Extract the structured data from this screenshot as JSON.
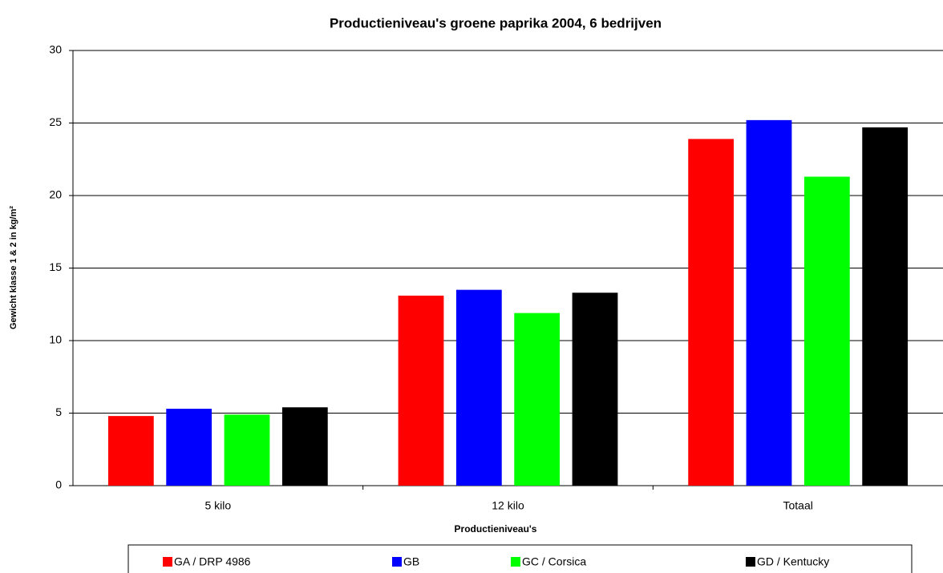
{
  "chart_data": {
    "type": "bar",
    "title": "Productieniveau's groene paprika 2004, 6 bedrijven",
    "x_label": "Productieniveau's",
    "y_label": "Gewicht klasse 1 & 2 in kg/m²",
    "categories": [
      "5 kilo",
      "12 kilo",
      "Totaal"
    ],
    "series": [
      {
        "name": "GA / DRP 4986",
        "color": "#ff0000",
        "values": [
          4.8,
          13.1,
          23.9
        ]
      },
      {
        "name": "GB",
        "color": "#0000ff",
        "values": [
          5.3,
          13.5,
          25.2
        ]
      },
      {
        "name": "GC / Corsica",
        "color": "#00ff00",
        "values": [
          4.9,
          11.9,
          21.3
        ]
      },
      {
        "name": "GD / Kentucky",
        "color": "#000000",
        "values": [
          5.4,
          13.3,
          24.7
        ]
      }
    ],
    "ylim": [
      0,
      30
    ],
    "yticks": [
      0,
      5,
      10,
      15,
      20,
      25,
      30
    ],
    "grid": true,
    "legend": "bottom"
  }
}
